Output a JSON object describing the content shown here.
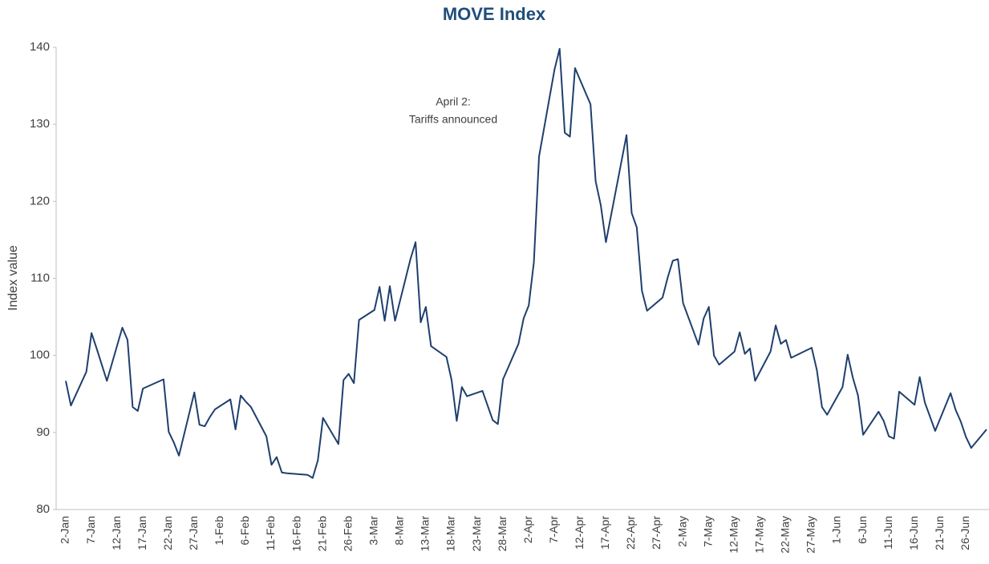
{
  "chart_data": {
    "type": "line",
    "title": "MOVE Index",
    "ylabel": "Index value",
    "annotation": [
      "April 2:",
      "Tariffs announced"
    ],
    "x": [
      "2-Jan",
      "3-Jan",
      "6-Jan",
      "7-Jan",
      "8-Jan",
      "10-Jan",
      "13-Jan",
      "14-Jan",
      "15-Jan",
      "16-Jan",
      "17-Jan",
      "21-Jan",
      "22-Jan",
      "23-Jan",
      "24-Jan",
      "27-Jan",
      "28-Jan",
      "29-Jan",
      "30-Jan",
      "31-Jan",
      "3-Feb",
      "4-Feb",
      "5-Feb",
      "6-Feb",
      "7-Feb",
      "10-Feb",
      "11-Feb",
      "12-Feb",
      "13-Feb",
      "14-Feb",
      "18-Feb",
      "19-Feb",
      "20-Feb",
      "21-Feb",
      "24-Feb",
      "25-Feb",
      "26-Feb",
      "27-Feb",
      "28-Feb",
      "3-Mar",
      "4-Mar",
      "5-Mar",
      "6-Mar",
      "7-Mar",
      "10-Mar",
      "11-Mar",
      "12-Mar",
      "13-Mar",
      "14-Mar",
      "17-Mar",
      "18-Mar",
      "19-Mar",
      "20-Mar",
      "21-Mar",
      "24-Mar",
      "25-Mar",
      "26-Mar",
      "27-Mar",
      "28-Mar",
      "31-Mar",
      "1-Apr",
      "2-Apr",
      "3-Apr",
      "4-Apr",
      "7-Apr",
      "8-Apr",
      "9-Apr",
      "10-Apr",
      "11-Apr",
      "14-Apr",
      "15-Apr",
      "16-Apr",
      "17-Apr",
      "21-Apr",
      "22-Apr",
      "23-Apr",
      "24-Apr",
      "25-Apr",
      "28-Apr",
      "29-Apr",
      "30-Apr",
      "1-May",
      "2-May",
      "5-May",
      "6-May",
      "7-May",
      "8-May",
      "9-May",
      "12-May",
      "13-May",
      "14-May",
      "15-May",
      "16-May",
      "19-May",
      "20-May",
      "21-May",
      "22-May",
      "23-May",
      "27-May",
      "28-May",
      "29-May",
      "30-May",
      "2-Jun",
      "3-Jun",
      "4-Jun",
      "5-Jun",
      "6-Jun",
      "9-Jun",
      "10-Jun",
      "11-Jun",
      "12-Jun",
      "13-Jun",
      "16-Jun",
      "17-Jun",
      "18-Jun",
      "20-Jun",
      "23-Jun",
      "24-Jun",
      "25-Jun",
      "26-Jun",
      "27-Jun",
      "30-Jun"
    ],
    "series": [
      {
        "name": "MOVE Index",
        "color": "#1f3f6e",
        "values": [
          96.7,
          93.5,
          97.9,
          102.9,
          100.9,
          96.7,
          103.6,
          102.0,
          93.3,
          92.8,
          95.7,
          96.9,
          90.1,
          88.7,
          87.0,
          95.2,
          91.0,
          90.8,
          92.0,
          93.0,
          94.3,
          90.4,
          94.8,
          94.0,
          93.3,
          89.5,
          85.8,
          86.8,
          84.8,
          84.7,
          84.5,
          84.1,
          86.4,
          91.9,
          88.5,
          96.8,
          97.6,
          96.4,
          104.6,
          105.9,
          108.9,
          104.5,
          109.0,
          104.5,
          112.5,
          114.7,
          104.3,
          106.3,
          101.2,
          99.8,
          96.8,
          91.5,
          95.9,
          94.7,
          95.4,
          93.5,
          91.6,
          91.1,
          96.9,
          101.5,
          104.8,
          106.5,
          112.1,
          125.8,
          137.1,
          139.8,
          128.9,
          128.4,
          137.3,
          132.6,
          122.6,
          119.5,
          114.7,
          128.6,
          118.5,
          116.6,
          108.4,
          105.8,
          107.5,
          110.1,
          112.3,
          112.5,
          106.8,
          101.4,
          104.8,
          106.3,
          100.0,
          98.8,
          100.5,
          103.0,
          100.2,
          100.9,
          96.7,
          100.5,
          103.9,
          101.5,
          102.0,
          99.7,
          101.0,
          98.1,
          93.3,
          92.3,
          95.9,
          100.1,
          97.1,
          94.8,
          89.7,
          92.7,
          91.5,
          89.5,
          89.2,
          95.3,
          93.6,
          97.2,
          93.9,
          90.2,
          95.1,
          92.9,
          91.4,
          89.4,
          88.0,
          90.4
        ]
      }
    ],
    "xlim": [
      "2-Jan",
      "30-Jun"
    ],
    "xticks": [
      "2-Jan",
      "7-Jan",
      "12-Jan",
      "17-Jan",
      "22-Jan",
      "27-Jan",
      "1-Feb",
      "6-Feb",
      "11-Feb",
      "16-Feb",
      "21-Feb",
      "26-Feb",
      "3-Mar",
      "8-Mar",
      "13-Mar",
      "18-Mar",
      "23-Mar",
      "28-Mar",
      "2-Apr",
      "7-Apr",
      "12-Apr",
      "17-Apr",
      "22-Apr",
      "27-Apr",
      "2-May",
      "7-May",
      "12-May",
      "17-May",
      "22-May",
      "27-May",
      "1-Jun",
      "6-Jun",
      "11-Jun",
      "16-Jun",
      "21-Jun",
      "26-Jun"
    ],
    "ylim": [
      80,
      140
    ],
    "yticks": [
      80,
      90,
      100,
      110,
      120,
      130,
      140
    ],
    "grid": false
  }
}
